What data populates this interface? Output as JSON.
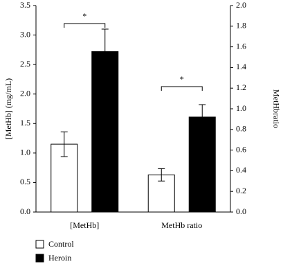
{
  "chart_data": {
    "type": "bar",
    "categories": [
      "[MetHb]",
      "MetHb ratio"
    ],
    "category_axes": [
      "y",
      "y2"
    ],
    "series": [
      {
        "name": "Control",
        "color": "#ffffff",
        "values": [
          1.15,
          0.36
        ],
        "errors": [
          0.21,
          0.06
        ]
      },
      {
        "name": "Heroin",
        "color": "#000000",
        "values": [
          2.72,
          0.92
        ],
        "errors": [
          0.38,
          0.12
        ]
      }
    ],
    "ylabel": "[MetHb] (mg/mL)",
    "y2label": "MetHbratio",
    "ylim": [
      0,
      3.5
    ],
    "yticks": [
      {
        "value": 0,
        "label": "0.0"
      },
      0.5,
      {
        "value": 1,
        "label": "1.0"
      },
      1.5,
      {
        "value": 2,
        "label": "2.0"
      },
      2.5,
      {
        "value": 3,
        "label": "3.0"
      },
      3.5
    ],
    "y2lim": [
      0,
      2
    ],
    "y2ticks": [
      {
        "value": 0,
        "label": "0.0"
      },
      0.2,
      0.4,
      0.6,
      0.8,
      {
        "value": 1,
        "label": "1.0"
      },
      1.2,
      1.4,
      1.6,
      1.8,
      {
        "value": 2,
        "label": "2.0"
      }
    ],
    "annotations": [
      "*",
      "*"
    ],
    "legend": "bottom-left"
  }
}
